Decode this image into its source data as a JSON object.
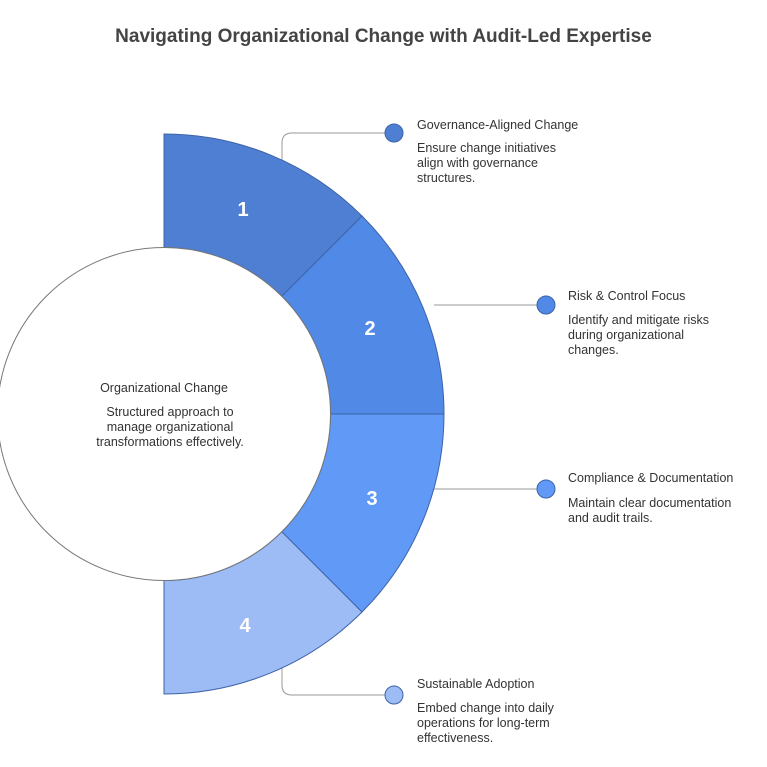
{
  "title": "Navigating Organizational Change with Audit-Led Expertise",
  "center": {
    "title": "Organizational Change",
    "description_lines": [
      "Structured approach to",
      "manage organizational",
      "transformations effectively."
    ]
  },
  "segments": [
    {
      "number": "1",
      "color": "#4f7fd3",
      "title": "Governance-Aligned Change",
      "description_lines": [
        "Ensure change initiatives",
        "align with governance",
        "structures."
      ]
    },
    {
      "number": "2",
      "color": "#5189e6",
      "title": "Risk & Control Focus",
      "description_lines": [
        "Identify and mitigate risks",
        "during organizational",
        "changes."
      ]
    },
    {
      "number": "3",
      "color": "#6199f6",
      "title": "Compliance & Documentation",
      "description_lines": [
        "Maintain clear documentation",
        "and audit trails."
      ]
    },
    {
      "number": "4",
      "color": "#9dbcf6",
      "title": "Sustainable Adoption",
      "description_lines": [
        "Embed change into daily",
        "operations for long-term",
        "effectiveness."
      ]
    }
  ]
}
